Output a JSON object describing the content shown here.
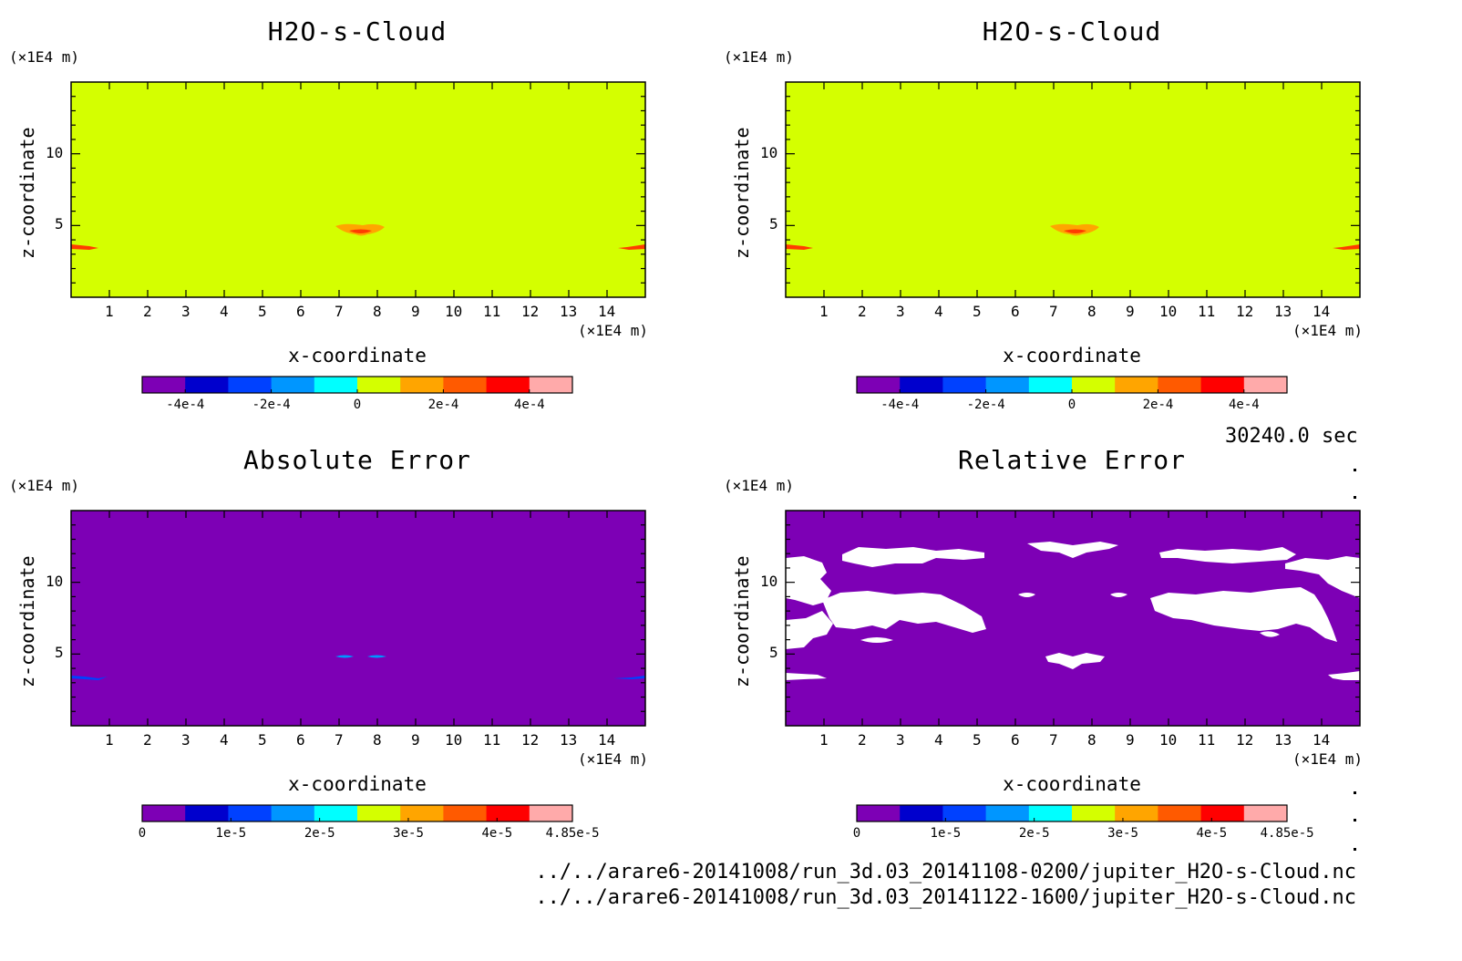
{
  "colors": {
    "field_low": "#7d00b5",
    "field_background": "#d4ff00",
    "cloud_orange": "#ffa500",
    "cloud_red": "#ff3c00",
    "white": "#ffffff",
    "colorbar": [
      "#7d00b5",
      "#0000cd",
      "#0041ff",
      "#0096ff",
      "#00ffff",
      "#d4ff00",
      "#ffa500",
      "#ff5a00",
      "#ff0000",
      "#ffaaaa"
    ]
  },
  "chart_data": [
    {
      "type": "heatmap",
      "title": "H2O-s-Cloud",
      "xlabel": "x-coordinate",
      "ylabel": "z-coordinate",
      "x_unit": "(×1E4 m)",
      "y_unit": "(×1E4 m)",
      "xlim": [
        0,
        15
      ],
      "ylim": [
        0,
        15
      ],
      "x_ticks": [
        "1",
        "2",
        "3",
        "4",
        "5",
        "6",
        "7",
        "8",
        "9",
        "10",
        "11",
        "12",
        "13",
        "14"
      ],
      "y_ticks": [
        "5",
        "10"
      ],
      "background_value": 0,
      "colorbar_ticks": [
        "-4e-4",
        "-2e-4",
        "0",
        "2e-4",
        "4e-4"
      ],
      "colorbar_range": [
        -0.0005,
        0.0005
      ]
    },
    {
      "type": "heatmap",
      "title": "H2O-s-Cloud",
      "xlabel": "x-coordinate",
      "ylabel": "z-coordinate",
      "x_unit": "(×1E4 m)",
      "y_unit": "(×1E4 m)",
      "xlim": [
        0,
        15
      ],
      "ylim": [
        0,
        15
      ],
      "x_ticks": [
        "1",
        "2",
        "3",
        "4",
        "5",
        "6",
        "7",
        "8",
        "9",
        "10",
        "11",
        "12",
        "13",
        "14"
      ],
      "y_ticks": [
        "5",
        "10"
      ],
      "background_value": 0,
      "colorbar_ticks": [
        "-4e-4",
        "-2e-4",
        "0",
        "2e-4",
        "4e-4"
      ],
      "colorbar_range": [
        -0.0005,
        0.0005
      ]
    },
    {
      "type": "heatmap",
      "title": "Absolute Error",
      "xlabel": "x-coordinate",
      "ylabel": "z-coordinate",
      "x_unit": "(×1E4 m)",
      "y_unit": "(×1E4 m)",
      "xlim": [
        0,
        15
      ],
      "ylim": [
        0,
        15
      ],
      "x_ticks": [
        "1",
        "2",
        "3",
        "4",
        "5",
        "6",
        "7",
        "8",
        "9",
        "10",
        "11",
        "12",
        "13",
        "14"
      ],
      "y_ticks": [
        "5",
        "10"
      ],
      "background_value": 0,
      "colorbar_ticks": [
        "0",
        "1e-5",
        "2e-5",
        "3e-5",
        "4e-5",
        "4.85e-5"
      ],
      "colorbar_range": [
        0,
        4.85e-05
      ]
    },
    {
      "type": "heatmap",
      "title": "Relative Error",
      "xlabel": "x-coordinate",
      "ylabel": "z-coordinate",
      "x_unit": "(×1E4 m)",
      "y_unit": "(×1E4 m)",
      "xlim": [
        0,
        15
      ],
      "ylim": [
        0,
        15
      ],
      "x_ticks": [
        "1",
        "2",
        "3",
        "4",
        "5",
        "6",
        "7",
        "8",
        "9",
        "10",
        "11",
        "12",
        "13",
        "14"
      ],
      "y_ticks": [
        "5",
        "10"
      ],
      "background_value": 0,
      "colorbar_ticks": [
        "0",
        "1e-5",
        "2e-5",
        "3e-5",
        "4e-5",
        "4.85e-5"
      ],
      "colorbar_range": [
        0,
        4.85e-05
      ]
    }
  ],
  "time_label": "30240.0 sec",
  "file_paths": [
    "../../arare6-20141008/run_3d.03_20141108-0200/jupiter_H2O-s-Cloud.nc",
    "../../arare6-20141008/run_3d.03_20141122-1600/jupiter_H2O-s-Cloud.nc"
  ]
}
